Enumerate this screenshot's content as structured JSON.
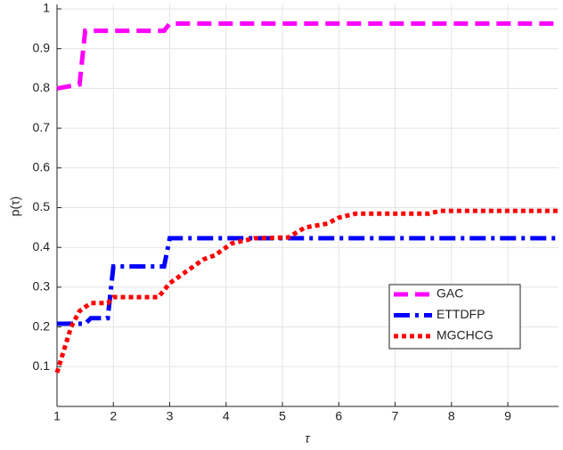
{
  "chart_data": {
    "type": "line",
    "x_label": "τ",
    "y_label": "p(τ)",
    "xlim": [
      1,
      9.9
    ],
    "ylim": [
      0,
      1
    ],
    "xticks": [
      1,
      2,
      3,
      4,
      5,
      6,
      7,
      8,
      9
    ],
    "yticks": [
      0.1,
      0.2,
      0.3,
      0.4,
      0.5,
      0.6,
      0.7,
      0.8,
      0.9,
      1
    ],
    "grid": true,
    "legend": "lower right",
    "series": [
      {
        "name": "GAC",
        "color": "#ff00ff",
        "linestyle": "dashed",
        "x": [
          1,
          1.4,
          1.5,
          2.9,
          3,
          9.9
        ],
        "values": [
          0.8,
          0.81,
          0.945,
          0.945,
          0.963,
          0.963
        ]
      },
      {
        "name": "ETTDFP",
        "color": "#0000ff",
        "linestyle": "dashdot",
        "x": [
          1,
          1.5,
          1.6,
          1.9,
          2,
          2.9,
          3,
          9.9
        ],
        "values": [
          0.208,
          0.208,
          0.222,
          0.222,
          0.352,
          0.352,
          0.423,
          0.423
        ]
      },
      {
        "name": "MGCHCG",
        "color": "#ff0000",
        "linestyle": "dotted",
        "x": [
          1,
          1.25,
          1.4,
          1.6,
          1.9,
          2,
          2.8,
          3,
          3.3,
          3.6,
          3.8,
          4.1,
          4.5,
          5.1,
          5.4,
          5.8,
          6,
          6.3,
          7.6,
          7.8,
          9.9
        ],
        "values": [
          0.085,
          0.2,
          0.24,
          0.26,
          0.26,
          0.275,
          0.275,
          0.31,
          0.34,
          0.37,
          0.38,
          0.41,
          0.423,
          0.425,
          0.45,
          0.46,
          0.475,
          0.485,
          0.485,
          0.492,
          0.492
        ]
      }
    ]
  }
}
